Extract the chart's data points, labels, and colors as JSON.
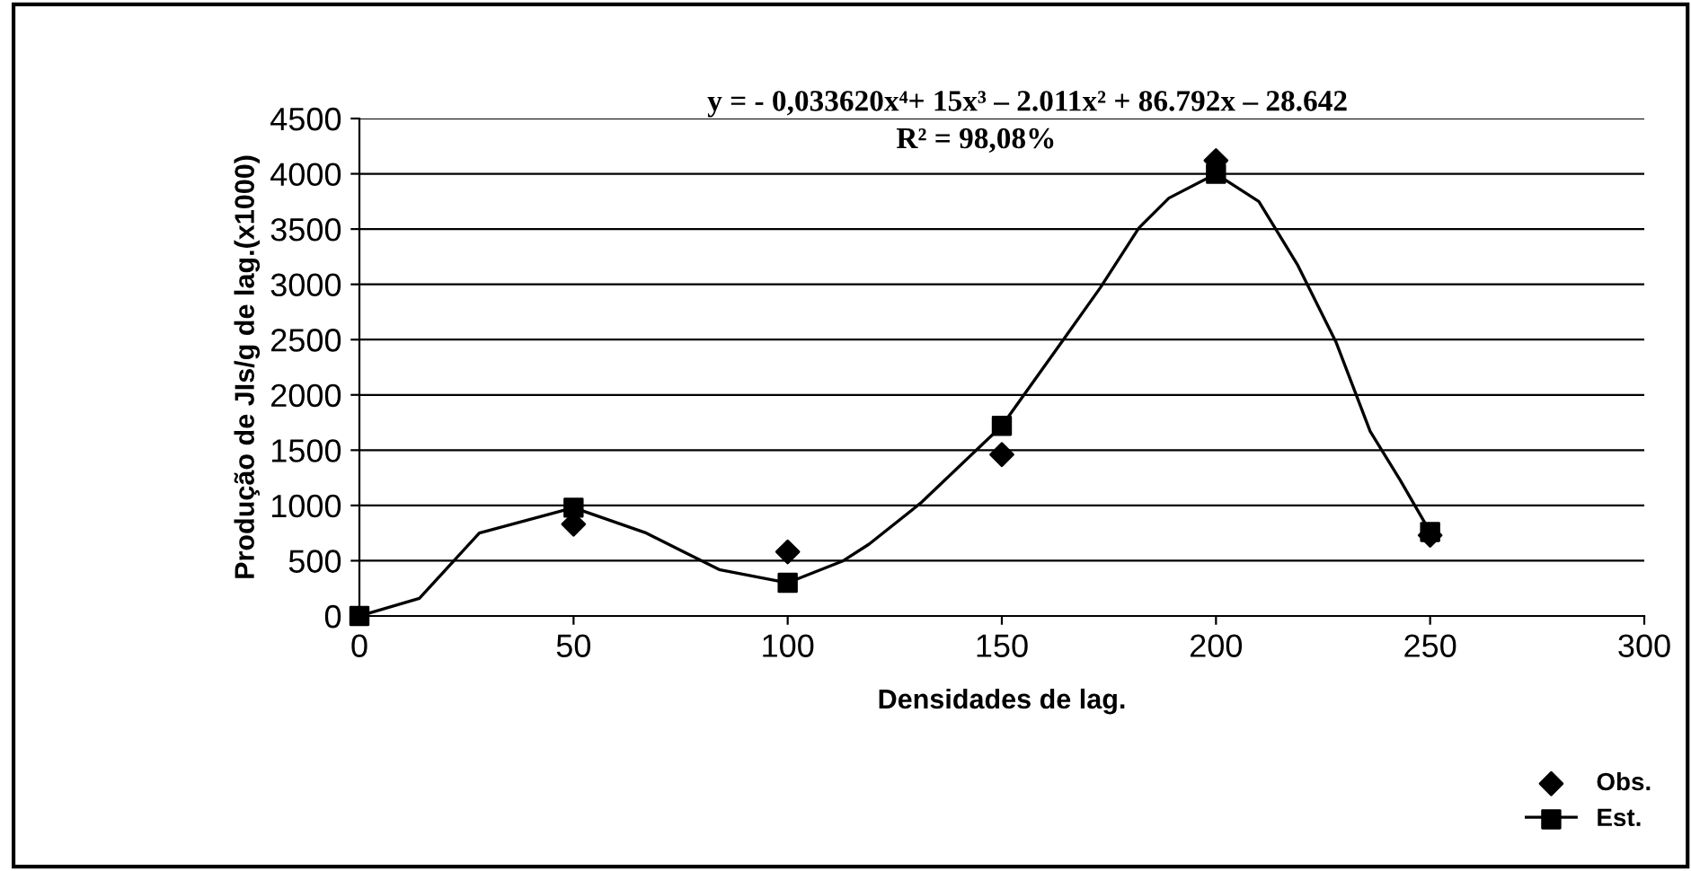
{
  "chart_data": {
    "type": "line",
    "xlabel": "Densidades de lag.",
    "ylabel": "Produção de JIs/g de lag.(x1000)",
    "annotations": [
      "y = - 0,033620x⁴+ 15x³ – 2.011x² + 86.792x – 28.642",
      "R² = 98,08%"
    ],
    "series": [
      {
        "name": "Obs.",
        "type": "scatter",
        "marker": "diamond",
        "color": "#000000",
        "x": [
          50,
          100,
          150,
          200,
          250
        ],
        "values": [
          830,
          580,
          1460,
          4120,
          730
        ]
      },
      {
        "name": "Est.",
        "marker": "none",
        "color": "#000000",
        "x": [
          0,
          14,
          28,
          50,
          67,
          84,
          100,
          113,
          119,
          131,
          150,
          164,
          173,
          182,
          189,
          200,
          210,
          219,
          228,
          236,
          243,
          250
        ],
        "values": [
          0,
          160,
          750,
          980,
          750,
          420,
          300,
          500,
          650,
          1020,
          1720,
          2480,
          2970,
          3510,
          3780,
          4000,
          3750,
          3180,
          2480,
          1670,
          1230,
          760
        ]
      },
      {
        "type": "scatter",
        "marker": "square",
        "color": "#000000",
        "x": [
          0,
          50,
          100,
          150,
          200,
          250
        ],
        "values": [
          0,
          980,
          300,
          1720,
          4000,
          760
        ]
      }
    ],
    "xlim": [
      0,
      300
    ],
    "xticks": [
      0,
      50,
      100,
      150,
      200,
      250,
      300
    ],
    "ylim": [
      0,
      4500
    ],
    "yticks": [
      0,
      500,
      1000,
      1500,
      2000,
      2500,
      3000,
      3500,
      4000,
      4500
    ],
    "grid": "y",
    "legend": "bottom right"
  }
}
